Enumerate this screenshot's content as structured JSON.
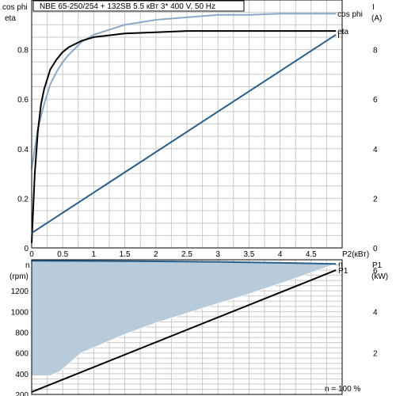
{
  "chart_data": [
    {
      "type": "line",
      "title": "NBE 65-250/254 + 132SB    5.5 кВт   3* 400 V, 50 Hz",
      "left_axis_label_1": "cos phi",
      "left_axis_label_2": "eta",
      "right_axis_label_1": "I",
      "right_axis_label_2": "(A)",
      "xlabel": "P2(кВт)",
      "xlim": [
        0,
        5
      ],
      "ylim_left": [
        0,
        1.0
      ],
      "ylim_right": [
        0,
        10
      ],
      "x_ticks": [
        "0",
        "0.5",
        "1",
        "1.5",
        "2",
        "2.5",
        "3",
        "3.5",
        "4",
        "4.5"
      ],
      "y_left_ticks": [
        "0",
        "0.2",
        "0.4",
        "0.6",
        "0.8"
      ],
      "y_right_ticks": [
        "0",
        "2",
        "4",
        "6",
        "8"
      ],
      "grid": true,
      "series": [
        {
          "name": "cos phi",
          "color": "#8aa8c6",
          "axis": "left",
          "x": [
            0,
            0.05,
            0.1,
            0.2,
            0.3,
            0.4,
            0.5,
            0.6,
            0.8,
            1.0,
            1.5,
            2.0,
            2.5,
            3.0,
            3.5,
            4.0,
            4.5,
            4.9
          ],
          "values": [
            0.32,
            0.4,
            0.48,
            0.58,
            0.66,
            0.71,
            0.75,
            0.78,
            0.83,
            0.86,
            0.9,
            0.92,
            0.93,
            0.94,
            0.94,
            0.945,
            0.945,
            0.945
          ]
        },
        {
          "name": "eta",
          "color": "#000000",
          "axis": "left",
          "x": [
            0,
            0.05,
            0.1,
            0.15,
            0.2,
            0.3,
            0.4,
            0.5,
            0.6,
            0.8,
            1.0,
            1.5,
            2.0,
            2.5,
            3.0,
            3.5,
            4.0,
            4.5,
            4.9
          ],
          "values": [
            0.02,
            0.3,
            0.47,
            0.58,
            0.64,
            0.72,
            0.76,
            0.79,
            0.81,
            0.835,
            0.85,
            0.865,
            0.87,
            0.875,
            0.875,
            0.875,
            0.875,
            0.875,
            0.875
          ]
        },
        {
          "name": "I",
          "color": "#2a5f8a",
          "axis": "right",
          "x": [
            0,
            4.9
          ],
          "values": [
            0.6,
            8.6
          ]
        }
      ]
    },
    {
      "type": "area",
      "left_axis_label_1": "n",
      "left_axis_label_2": "(rpm)",
      "right_axis_label_1": "P1",
      "right_axis_label_2": "(kW)",
      "footer_label": "n   = 100 %",
      "xlim": [
        0,
        5
      ],
      "ylim_left": [
        200,
        1500
      ],
      "ylim_right": [
        0,
        6.5
      ],
      "y_left_ticks": [
        "200",
        "400",
        "600",
        "800",
        "1000",
        "1200"
      ],
      "y_right_ticks": [
        "2",
        "4",
        "6"
      ],
      "grid": true,
      "fill_color": "#b8cbdb",
      "series": [
        {
          "name": "n",
          "color": "#2a5f8a",
          "axis": "left",
          "x": [
            0,
            1,
            2,
            3,
            4,
            4.9
          ],
          "values": [
            1490,
            1488,
            1485,
            1480,
            1470,
            1460
          ]
        },
        {
          "name": "lower boundary",
          "axis": "left",
          "x": [
            0,
            0.3,
            0.45,
            0.8,
            1.5,
            2.0,
            2.8,
            3.5,
            4.2,
            4.9
          ],
          "values": [
            380,
            380,
            420,
            600,
            780,
            890,
            1040,
            1170,
            1310,
            1460
          ]
        },
        {
          "name": "P1",
          "color": "#000000",
          "axis": "right",
          "x": [
            0,
            4.9
          ],
          "values": [
            0.12,
            6.0
          ]
        }
      ]
    }
  ]
}
